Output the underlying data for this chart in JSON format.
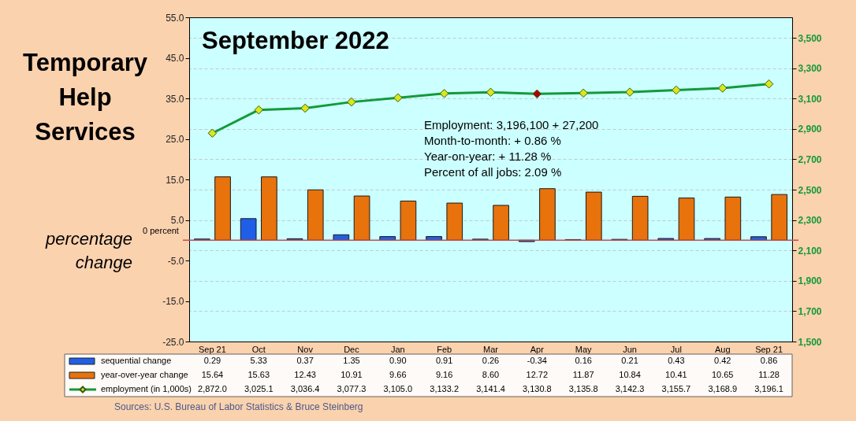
{
  "chart_data": {
    "type": "bar",
    "title": "Temporary Help Services",
    "subtitle": "September 2022",
    "ylabel": "percentage change",
    "categories": [
      "Sep 21",
      "Oct",
      "Nov",
      "Dec",
      "Jan",
      "Feb",
      "Mar",
      "Apr",
      "May",
      "Jun",
      "Jul",
      "Aug",
      "Sep 21"
    ],
    "series": [
      {
        "name": "sequential change",
        "color": "#1f5fe8",
        "values": [
          0.29,
          5.33,
          0.37,
          1.35,
          0.9,
          0.91,
          0.26,
          -0.34,
          0.16,
          0.21,
          0.43,
          0.42,
          0.86
        ],
        "value_labels": [
          "0.29",
          "5.33",
          "0.37",
          "1.35",
          "0.90",
          "0.91",
          "0.26",
          "-0.34",
          "0.16",
          "0.21",
          "0.43",
          "0.42",
          "0.86"
        ]
      },
      {
        "name": "year-over-year change",
        "color": "#e8720c",
        "values": [
          15.64,
          15.63,
          12.43,
          10.91,
          9.66,
          9.16,
          8.6,
          12.72,
          11.87,
          10.84,
          10.41,
          10.65,
          11.28
        ],
        "value_labels": [
          "15.64",
          "15.63",
          "12.43",
          "10.91",
          "9.66",
          "9.16",
          "8.60",
          "12.72",
          "11.87",
          "10.84",
          "10.41",
          "10.65",
          "11.28"
        ]
      },
      {
        "name": "employment (in 1,000s)",
        "type": "line",
        "axis": "y2",
        "color": "#139a3a",
        "colors": [
          "#d8e81c",
          "#d8e81c",
          "#d8e81c",
          "#d8e81c",
          "#d8e81c",
          "#d8e81c",
          "#d8e81c",
          "#b00000",
          "#d8e81c",
          "#d8e81c",
          "#d8e81c",
          "#d8e81c",
          "#d8e81c"
        ],
        "values": [
          2872.0,
          3025.1,
          3036.4,
          3077.3,
          3105.0,
          3133.2,
          3141.4,
          3130.8,
          3135.8,
          3142.3,
          3155.7,
          3168.9,
          3196.1
        ],
        "value_labels": [
          "2,872.0",
          "3,025.1",
          "3,036.4",
          "3,077.3",
          "3,105.0",
          "3,133.2",
          "3,141.4",
          "3,130.8",
          "3,135.8",
          "3,142.3",
          "3,155.7",
          "3,168.9",
          "3,196.1"
        ]
      }
    ],
    "ylim": [
      -25,
      55
    ],
    "yticks": [
      {
        "value": -25,
        "label": "-25.0"
      },
      {
        "value": -15,
        "label": "-15.0"
      },
      {
        "value": -5,
        "label": "-5.0"
      },
      {
        "value": 5,
        "label": "5.0"
      },
      {
        "value": 15,
        "label": "15.0"
      },
      {
        "value": 25,
        "label": "25.0"
      },
      {
        "value": 35,
        "label": "35.0"
      },
      {
        "value": 45,
        "label": "45.0"
      },
      {
        "value": 55,
        "label": "55.0"
      }
    ],
    "y2lim": [
      1500,
      3635
    ],
    "y2ticks": [
      {
        "value": 1500,
        "label": "1,500"
      },
      {
        "value": 1700,
        "label": "1,700"
      },
      {
        "value": 1900,
        "label": "1,900"
      },
      {
        "value": 2100,
        "label": "2,100"
      },
      {
        "value": 2300,
        "label": "2,300"
      },
      {
        "value": 2500,
        "label": "2,500"
      },
      {
        "value": 2700,
        "label": "2,700"
      },
      {
        "value": 2900,
        "label": "2,900"
      },
      {
        "value": 3100,
        "label": "3,100"
      },
      {
        "value": 3300,
        "label": "3,300"
      },
      {
        "value": 3500,
        "label": "3,500"
      }
    ],
    "ref_lines": [
      {
        "axis": "y",
        "value": 0,
        "label": "0 percent",
        "color": "#c0504d"
      }
    ],
    "annotations": [
      "Employment: 3,196,100 + 27,200",
      "Month-to-month: + 0.86 %",
      "Year-on-year: + 11.28 %",
      "Percent of all jobs: 2.09 %",
      "Sources: U.S. Bureau of Labor Statistics & Bruce Steinberg"
    ],
    "grid": "y",
    "legend": "bottom",
    "marker": "diamond",
    "line_style": "solid"
  }
}
